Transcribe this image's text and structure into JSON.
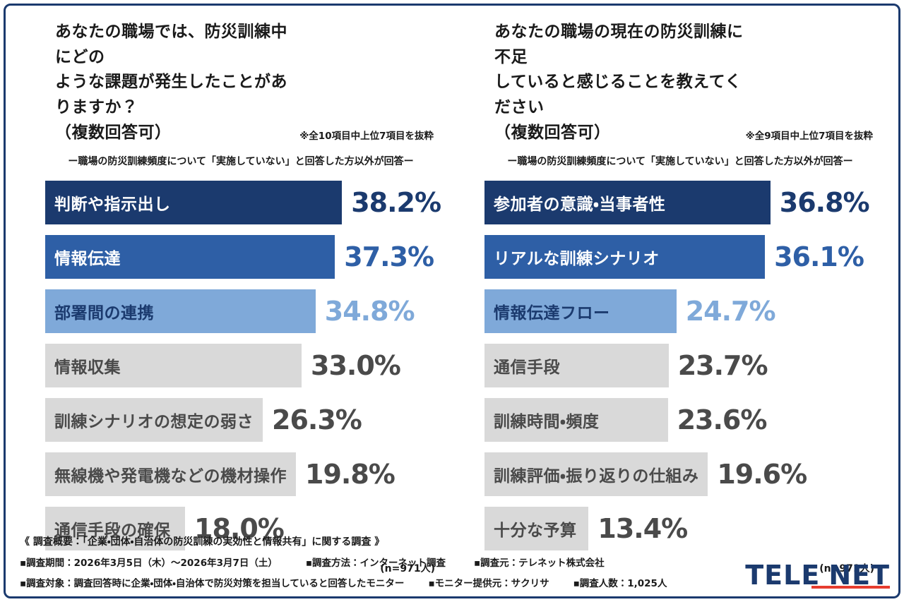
{
  "palette": {
    "navy": "#1b3a6e",
    "blue": "#2e5fa6",
    "light_blue": "#7fa9d9",
    "gray_bar": "#d9d9d9",
    "text_dark": "#1a1a1a",
    "text_gray": "#4a4a4a",
    "accent_red": "#e63c2f",
    "border_navy": "#1b3a6e"
  },
  "chart_data": [
    {
      "type": "bar",
      "orientation": "horizontal",
      "title": "あなたの職場では、防災訓練中にどの\nような課題が発生したことがありますか？\n（複数回答可）",
      "note": "※全10項目中上位7項目を抜粋",
      "subtitle": "ー職場の防災訓練頻度について「実施していない」と回答した方以外が回答ー",
      "categories": [
        "判断や指示出し",
        "情報伝達",
        "部署間の連携",
        "情報収集",
        "訓練シナリオの想定の弱さ",
        "無線機や発電機などの機材操作",
        "通信手段の確保"
      ],
      "values": [
        38.2,
        37.3,
        34.8,
        33.0,
        26.3,
        19.8,
        18.0
      ],
      "value_labels": [
        "38.2%",
        "37.3%",
        "34.8%",
        "33.0%",
        "26.3%",
        "19.8%",
        "18.0%"
      ],
      "n_label": "(n=971人)",
      "xlim": [
        0,
        40
      ],
      "legend": false,
      "grid": false
    },
    {
      "type": "bar",
      "orientation": "horizontal",
      "title": "あなたの職場の現在の防災訓練に不足\nしていると感じることを教えてください\n（複数回答可）",
      "note": "※全9項目中上位7項目を抜粋",
      "subtitle": "ー職場の防災訓練頻度について「実施していない」と回答した方以外が回答ー",
      "categories": [
        "参加者の意識・当事者性",
        "リアルな訓練シナリオ",
        "情報伝達フロー",
        "通信手段",
        "訓練時間・頻度",
        "訓練評価・振り返りの仕組み",
        "十分な予算"
      ],
      "values": [
        36.8,
        36.1,
        24.7,
        23.7,
        23.6,
        19.6,
        13.4
      ],
      "value_labels": [
        "36.8%",
        "36.1%",
        "24.7%",
        "23.7%",
        "23.6%",
        "19.6%",
        "13.4%"
      ],
      "n_label": "(n=971人)",
      "xlim": [
        0,
        40
      ],
      "legend": false,
      "grid": false
    }
  ],
  "footer": {
    "line1": "《 調査概要：「企業・団体・自治体の防災訓練の実効性と情報共有」に関する調査 》",
    "line2": [
      "▪調査期間：2026年3月5日（木）〜2026年3月7日（土）",
      "▪調査方法：インターネット調査",
      "▪調査元：テレネット株式会社"
    ],
    "line3": [
      "▪調査対象：調査回答時に企業・団体・自治体で防災対策を担当していると回答したモニター",
      "▪モニター提供元：サクリサ",
      "▪調査人数：1,025人"
    ]
  },
  "logo": {
    "text_left": "TELE",
    "text_right": "NET"
  }
}
